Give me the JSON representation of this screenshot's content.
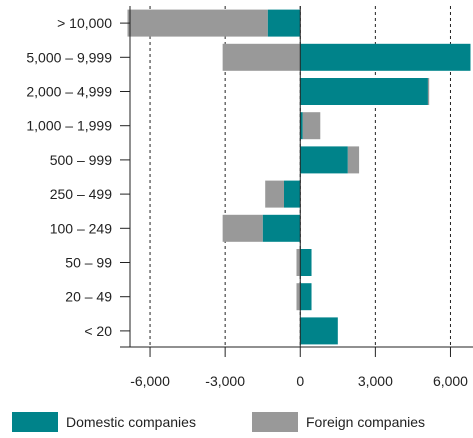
{
  "chart_data": {
    "type": "bar",
    "orientation": "horizontal",
    "stacked": true,
    "categories": [
      "> 10,000",
      "5,000 – 9,999",
      "2,000 – 4,999",
      "1,000 – 1,999",
      "500 – 999",
      "250 – 499",
      "100 – 249",
      "50 – 99",
      "20 – 49",
      "<  20"
    ],
    "series": [
      {
        "name": "Domestic companies",
        "color": "#00838a",
        "values": [
          -1300,
          6800,
          5100,
          100,
          1900,
          -650,
          -1500,
          450,
          450,
          1500
        ]
      },
      {
        "name": "Foreign companies",
        "color": "#999999",
        "values": [
          -5600,
          -3100,
          50,
          700,
          450,
          -750,
          -1600,
          -150,
          -150,
          0
        ]
      }
    ],
    "x_ticks": [
      "-6,000",
      "-3,000",
      "0",
      "3,000",
      "6,000"
    ],
    "x_tick_values": [
      -6000,
      -3000,
      0,
      3000,
      6000
    ],
    "xlim": [
      -7200,
      6900
    ],
    "grid": "vertical dashed",
    "legend_position": "bottom"
  }
}
